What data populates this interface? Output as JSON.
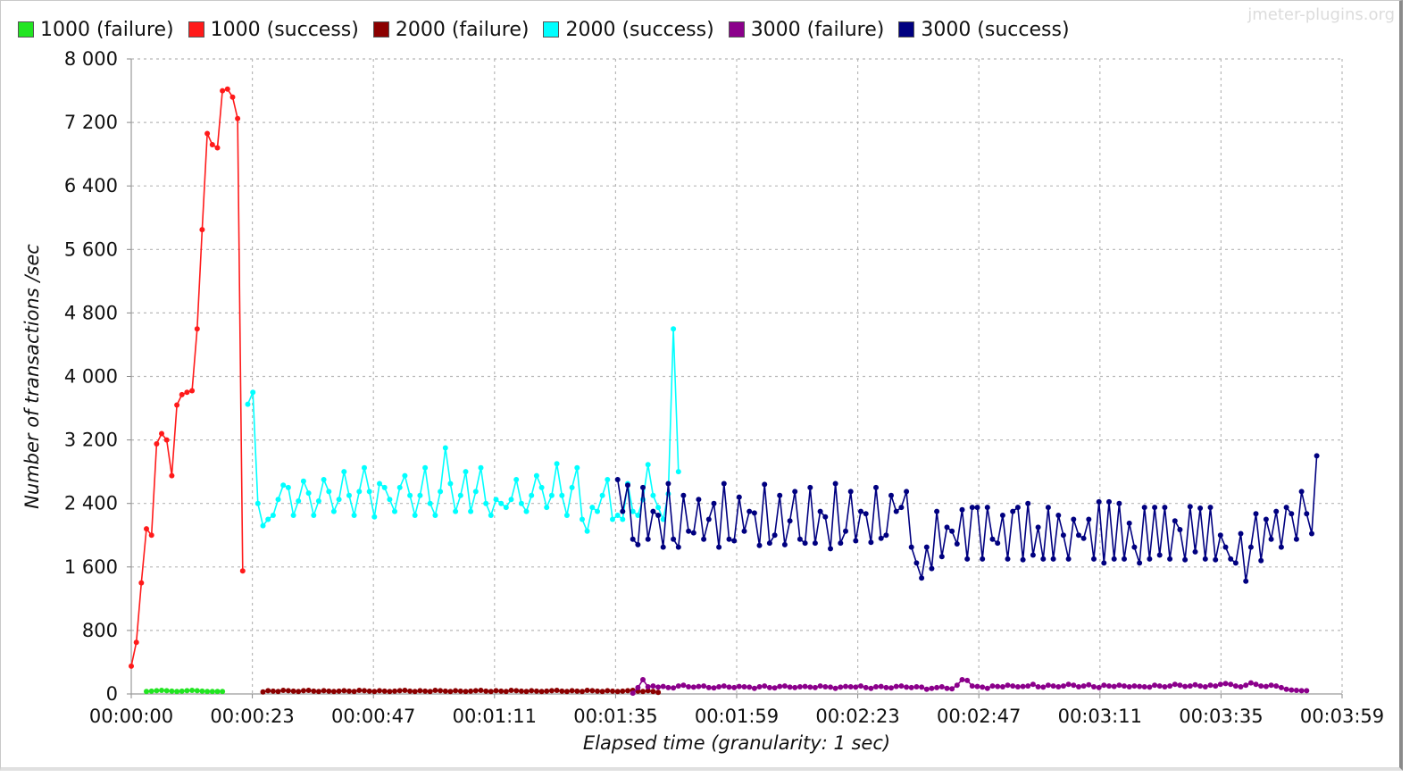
{
  "watermark": "jmeter-plugins.org",
  "legend": [
    {
      "label": "1000 (failure)",
      "color": "#22e522"
    },
    {
      "label": "1000 (success)",
      "color": "#ff1a1a"
    },
    {
      "label": "2000 (failure)",
      "color": "#8b0000"
    },
    {
      "label": "2000 (success)",
      "color": "#00ffff"
    },
    {
      "label": "3000 (failure)",
      "color": "#8b008b"
    },
    {
      "label": "3000 (success)",
      "color": "#000080"
    }
  ],
  "chart_data": {
    "type": "line",
    "xlabel": "Elapsed time (granularity: 1 sec)",
    "ylabel": "Number of transactions /sec",
    "ylim": [
      0,
      8000
    ],
    "xlim_seconds": [
      0,
      239
    ],
    "grid": true,
    "legend_position": "top",
    "y_ticks": [
      "0",
      "800",
      "1 600",
      "2 400",
      "3 200",
      "4 000",
      "4 800",
      "5 600",
      "6 400",
      "7 200",
      "8 000"
    ],
    "x_ticks": [
      "00:00:00",
      "00:00:23",
      "00:00:47",
      "00:01:11",
      "00:01:35",
      "00:01:59",
      "00:02:23",
      "00:02:47",
      "00:03:11",
      "00:03:35",
      "00:03:59"
    ],
    "series": [
      {
        "name": "1000 (failure)",
        "color": "#22e522",
        "t_start": 3,
        "values": [
          30,
          35,
          40,
          45,
          40,
          35,
          30,
          35,
          40,
          45,
          40,
          35,
          30,
          30,
          30,
          30
        ]
      },
      {
        "name": "1000 (success)",
        "color": "#ff1a1a",
        "t_start": 0,
        "values": [
          350,
          650,
          1400,
          2080,
          2000,
          3150,
          3280,
          3200,
          2750,
          3640,
          3770,
          3800,
          3820,
          4600,
          5850,
          7060,
          6920,
          6880,
          7600,
          7620,
          7520,
          7250,
          1550
        ]
      },
      {
        "name": "2000 (failure)",
        "color": "#8b0000",
        "t_start": 26,
        "values": [
          25,
          40,
          35,
          30,
          45,
          40,
          35,
          30,
          40,
          45,
          35,
          30,
          40,
          35,
          30,
          35,
          40,
          35,
          30,
          45,
          40,
          35,
          30,
          40,
          35,
          30,
          35,
          40,
          45,
          35,
          30,
          40,
          35,
          30,
          45,
          40,
          35,
          30,
          40,
          35,
          30,
          35,
          40,
          45,
          35,
          30,
          40,
          35,
          30,
          45,
          40,
          35,
          30,
          40,
          35,
          30,
          35,
          40,
          45,
          35,
          30,
          40,
          35,
          30,
          45,
          40,
          35,
          30,
          40,
          35,
          30,
          35,
          40,
          45,
          35,
          30,
          40,
          30,
          20
        ]
      },
      {
        "name": "2000 (success)",
        "color": "#00ffff",
        "t_start": 23,
        "values": [
          3650,
          3800,
          2400,
          2120,
          2200,
          2250,
          2450,
          2630,
          2600,
          2250,
          2430,
          2680,
          2530,
          2250,
          2430,
          2700,
          2550,
          2300,
          2450,
          2800,
          2500,
          2250,
          2550,
          2850,
          2550,
          2230,
          2650,
          2600,
          2450,
          2300,
          2600,
          2750,
          2500,
          2250,
          2500,
          2850,
          2400,
          2250,
          2550,
          3100,
          2650,
          2300,
          2500,
          2800,
          2300,
          2550,
          2850,
          2400,
          2250,
          2450,
          2400,
          2350,
          2450,
          2700,
          2400,
          2300,
          2500,
          2750,
          2600,
          2350,
          2500,
          2900,
          2500,
          2250,
          2600,
          2850,
          2200,
          2050,
          2350,
          2300,
          2500,
          2700,
          2200,
          2250,
          2200,
          2650,
          2300,
          2250,
          2450,
          2890,
          2500,
          2350,
          2200,
          2520,
          4600,
          2800
        ]
      },
      {
        "name": "3000 (failure)",
        "color": "#8b008b",
        "t_start": 99,
        "values": [
          10,
          80,
          180,
          90,
          100,
          85,
          95,
          80,
          75,
          100,
          110,
          90,
          85,
          95,
          100,
          80,
          75,
          90,
          100,
          85,
          80,
          95,
          90,
          85,
          70,
          90,
          100,
          80,
          75,
          95,
          100,
          85,
          80,
          90,
          95,
          85,
          80,
          100,
          90,
          85,
          70,
          85,
          95,
          90,
          85,
          100,
          80,
          70,
          90,
          95,
          80,
          75,
          95,
          100,
          85,
          80,
          90,
          85,
          60,
          70,
          80,
          90,
          70,
          65,
          110,
          180,
          170,
          100,
          95,
          85,
          70,
          100,
          95,
          90,
          110,
          100,
          90,
          95,
          100,
          120,
          90,
          85,
          110,
          100,
          90,
          100,
          120,
          110,
          90,
          100,
          115,
          90,
          80,
          110,
          100,
          95,
          110,
          100,
          90,
          100,
          95,
          90,
          85,
          110,
          100,
          90,
          100,
          120,
          110,
          95,
          100,
          115,
          100,
          90,
          110,
          100,
          120,
          130,
          120,
          100,
          90,
          110,
          140,
          120,
          100,
          95,
          110,
          100,
          80,
          60,
          50,
          45,
          40,
          40
        ]
      },
      {
        "name": "3000 (success)",
        "color": "#000080",
        "t_start": 96,
        "values": [
          2700,
          2300,
          2630,
          1950,
          1880,
          2600,
          1950,
          2300,
          2250,
          1850,
          2650,
          1950,
          1850,
          2500,
          2050,
          2030,
          2450,
          1950,
          2200,
          2400,
          1850,
          2650,
          1950,
          1930,
          2480,
          2050,
          2300,
          2280,
          1870,
          2640,
          1900,
          2000,
          2500,
          1880,
          2180,
          2550,
          1950,
          1900,
          2600,
          1900,
          2300,
          2230,
          1830,
          2650,
          1900,
          2050,
          2550,
          1930,
          2300,
          2270,
          1910,
          2600,
          1960,
          2000,
          2500,
          2300,
          2350,
          2550,
          1850,
          1650,
          1460,
          1850,
          1580,
          2300,
          1730,
          2100,
          2050,
          1890,
          2320,
          1700,
          2350,
          2350,
          1700,
          2350,
          1950,
          1900,
          2250,
          1700,
          2300,
          2350,
          1690,
          2400,
          1750,
          2100,
          1700,
          2350,
          1700,
          2250,
          2000,
          1700,
          2200,
          2000,
          1960,
          2200,
          1700,
          2420,
          1650,
          2420,
          1700,
          2400,
          1700,
          2150,
          1850,
          1650,
          2350,
          1700,
          2350,
          1750,
          2350,
          1700,
          2180,
          2070,
          1690,
          2360,
          1790,
          2340,
          1700,
          2350,
          1690,
          2000,
          1850,
          1700,
          1650,
          2020,
          1420,
          1850,
          2270,
          1680,
          2200,
          1950,
          2300,
          1850,
          2350,
          2270,
          1950,
          2550,
          2270,
          2020,
          3000
        ]
      }
    ]
  }
}
